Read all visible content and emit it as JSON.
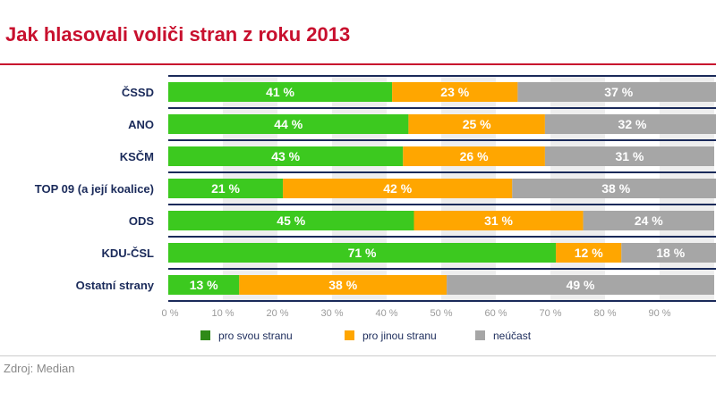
{
  "title": "Jak hlasovali voliči stran z roku 2013",
  "source": "Zdroj: Median",
  "chart_data": {
    "type": "bar",
    "orientation": "horizontal",
    "stacked": true,
    "title": "Jak hlasovali voliči stran z roku 2013",
    "categories": [
      "ČSSD",
      "ANO",
      "KSČM",
      "TOP 09 (a její koalice)",
      "ODS",
      "KDU-ČSL",
      "Ostatní strany"
    ],
    "series": [
      {
        "name": "pro svou stranu",
        "color": "#3cc91f",
        "values": [
          41,
          44,
          43,
          21,
          45,
          71,
          13
        ]
      },
      {
        "name": "pro jinou stranu",
        "color": "#ffa600",
        "values": [
          23,
          25,
          26,
          42,
          31,
          12,
          38
        ]
      },
      {
        "name": "neúčast",
        "color": "#a6a6a6",
        "values": [
          37,
          32,
          31,
          38,
          24,
          18,
          49
        ]
      }
    ],
    "value_labels": [
      [
        "41 %",
        "44 %",
        "43 %",
        "21 %",
        "45 %",
        "71 %",
        "13 %"
      ],
      [
        "23 %",
        "25 %",
        "26 %",
        "42 %",
        "31 %",
        "12 %",
        "38 %"
      ],
      [
        "37 %",
        "32 %",
        "31 %",
        "38 %",
        "24 %",
        "18 %",
        "49 %"
      ]
    ],
    "xlim": [
      0,
      100
    ],
    "x_ticks": [
      "0 %",
      "10 %",
      "20 %",
      "30 %",
      "40 %",
      "50 %",
      "60 %",
      "70 %",
      "80 %",
      "90 %"
    ],
    "legend_position": "bottom",
    "grid": true
  }
}
